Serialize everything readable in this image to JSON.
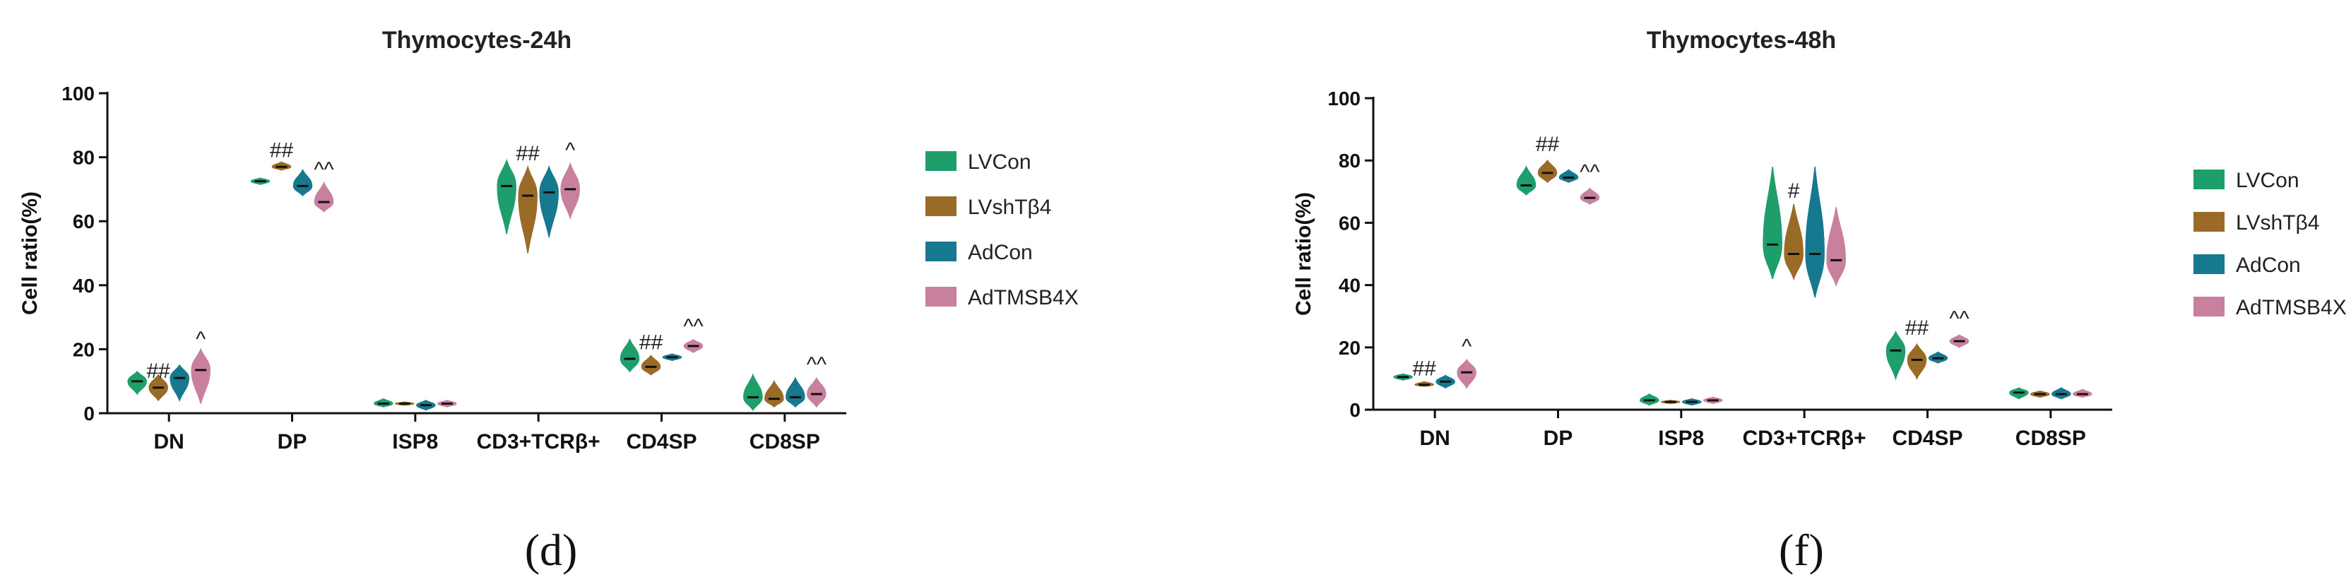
{
  "colors": {
    "LVCon": "#1d9e6b",
    "LVshTβ4": "#9a6a27",
    "AdCon": "#16798f",
    "AdTMSB4X": "#c9809e"
  },
  "chart_data": [
    {
      "type": "violin",
      "panel_label": "(d)",
      "title": "Thymocytes-24h",
      "ylabel": "Cell ratio(%)",
      "ylim": [
        0,
        100
      ],
      "yticks": [
        0,
        20,
        40,
        60,
        80,
        100
      ],
      "legend": "right",
      "categories": [
        "DN",
        "DP",
        "ISP8",
        "CD3+TCRβ+",
        "CD4SP",
        "CD8SP"
      ],
      "series": [
        {
          "name": "LVCon",
          "median": [
            10,
            72.5,
            3,
            71,
            17,
            5
          ],
          "min": [
            6,
            71.5,
            2,
            56,
            13,
            1
          ],
          "max": [
            13,
            73.5,
            4.5,
            79,
            23,
            12
          ]
        },
        {
          "name": "LVshTβ4",
          "median": [
            8,
            77,
            3,
            68,
            14.5,
            4.5
          ],
          "min": [
            4,
            76,
            2.5,
            50,
            12,
            2
          ],
          "max": [
            12,
            78.5,
            3.5,
            77,
            18,
            10
          ]
        },
        {
          "name": "AdCon",
          "median": [
            11,
            71,
            2.5,
            69,
            17.5,
            5
          ],
          "min": [
            4,
            68,
            1,
            55,
            16.5,
            2
          ],
          "max": [
            15,
            76,
            4,
            77,
            18.5,
            11
          ]
        },
        {
          "name": "AdTMSB4X",
          "median": [
            13.5,
            66,
            3,
            70,
            21,
            6
          ],
          "min": [
            3,
            63,
            2,
            61,
            19,
            2
          ],
          "max": [
            20,
            72,
            4,
            78,
            23,
            11
          ]
        }
      ],
      "annotations": [
        {
          "category": "DN",
          "series": "LVshTβ4",
          "text": "##",
          "y": 11
        },
        {
          "category": "DN",
          "series": "AdTMSB4X",
          "text": "^",
          "y": 21
        },
        {
          "category": "DP",
          "series": "LVshTβ4",
          "text": "##",
          "y": 80
        },
        {
          "category": "DP",
          "series": "AdTMSB4X",
          "text": "^^",
          "y": 74
        },
        {
          "category": "CD3+TCRβ+",
          "series": "LVshTβ4",
          "text": "##",
          "y": 79
        },
        {
          "category": "CD3+TCRβ+",
          "series": "AdTMSB4X",
          "text": "^",
          "y": 80
        },
        {
          "category": "CD4SP",
          "series": "LVshTβ4",
          "text": "##",
          "y": 20
        },
        {
          "category": "CD4SP",
          "series": "AdTMSB4X",
          "text": "^^",
          "y": 25
        },
        {
          "category": "CD8SP",
          "series": "AdTMSB4X",
          "text": "^^",
          "y": 13
        }
      ]
    },
    {
      "type": "violin",
      "panel_label": "(f)",
      "title": "Thymocytes-48h",
      "ylabel": "Cell ratio(%)",
      "ylim": [
        0,
        100
      ],
      "yticks": [
        0,
        20,
        40,
        60,
        80,
        100
      ],
      "legend": "right",
      "categories": [
        "DN",
        "DP",
        "ISP8",
        "CD3+TCRβ+",
        "CD4SP",
        "CD8SP"
      ],
      "series": [
        {
          "name": "LVCon",
          "median": [
            10.5,
            72,
            3,
            53,
            19,
            5.5
          ],
          "min": [
            9.5,
            69,
            1.5,
            42,
            10,
            3.5
          ],
          "max": [
            11.5,
            78,
            5,
            78,
            25,
            7
          ]
        },
        {
          "name": "LVshTβ4",
          "median": [
            8,
            76,
            2.5,
            50,
            16,
            5
          ],
          "min": [
            7.5,
            73,
            2,
            42,
            10,
            4
          ],
          "max": [
            9,
            80,
            3,
            66,
            21,
            6
          ]
        },
        {
          "name": "AdCon",
          "median": [
            9,
            74.5,
            2.5,
            50,
            16.5,
            5
          ],
          "min": [
            7,
            73,
            1.5,
            36,
            15,
            3.5
          ],
          "max": [
            11,
            77,
            3.5,
            78,
            18.5,
            7
          ]
        },
        {
          "name": "AdTMSB4X",
          "median": [
            12,
            68,
            3,
            48,
            22,
            5
          ],
          "min": [
            7,
            66,
            2,
            40,
            20,
            4
          ],
          "max": [
            16,
            71,
            4,
            65,
            24,
            6.5
          ]
        }
      ],
      "annotations": [
        {
          "category": "DN",
          "series": "LVshTβ4",
          "text": "##",
          "y": 11
        },
        {
          "category": "DN",
          "series": "AdTMSB4X",
          "text": "^",
          "y": 18
        },
        {
          "category": "DP",
          "series": "LVshTβ4",
          "text": "##",
          "y": 83
        },
        {
          "category": "DP",
          "series": "AdTMSB4X",
          "text": "^^",
          "y": 74
        },
        {
          "category": "CD3+TCRβ+",
          "series": "LVshTβ4",
          "text": "#",
          "y": 68
        },
        {
          "category": "CD4SP",
          "series": "LVshTβ4",
          "text": "##",
          "y": 24
        },
        {
          "category": "CD4SP",
          "series": "AdTMSB4X",
          "text": "^^",
          "y": 27
        }
      ]
    }
  ]
}
